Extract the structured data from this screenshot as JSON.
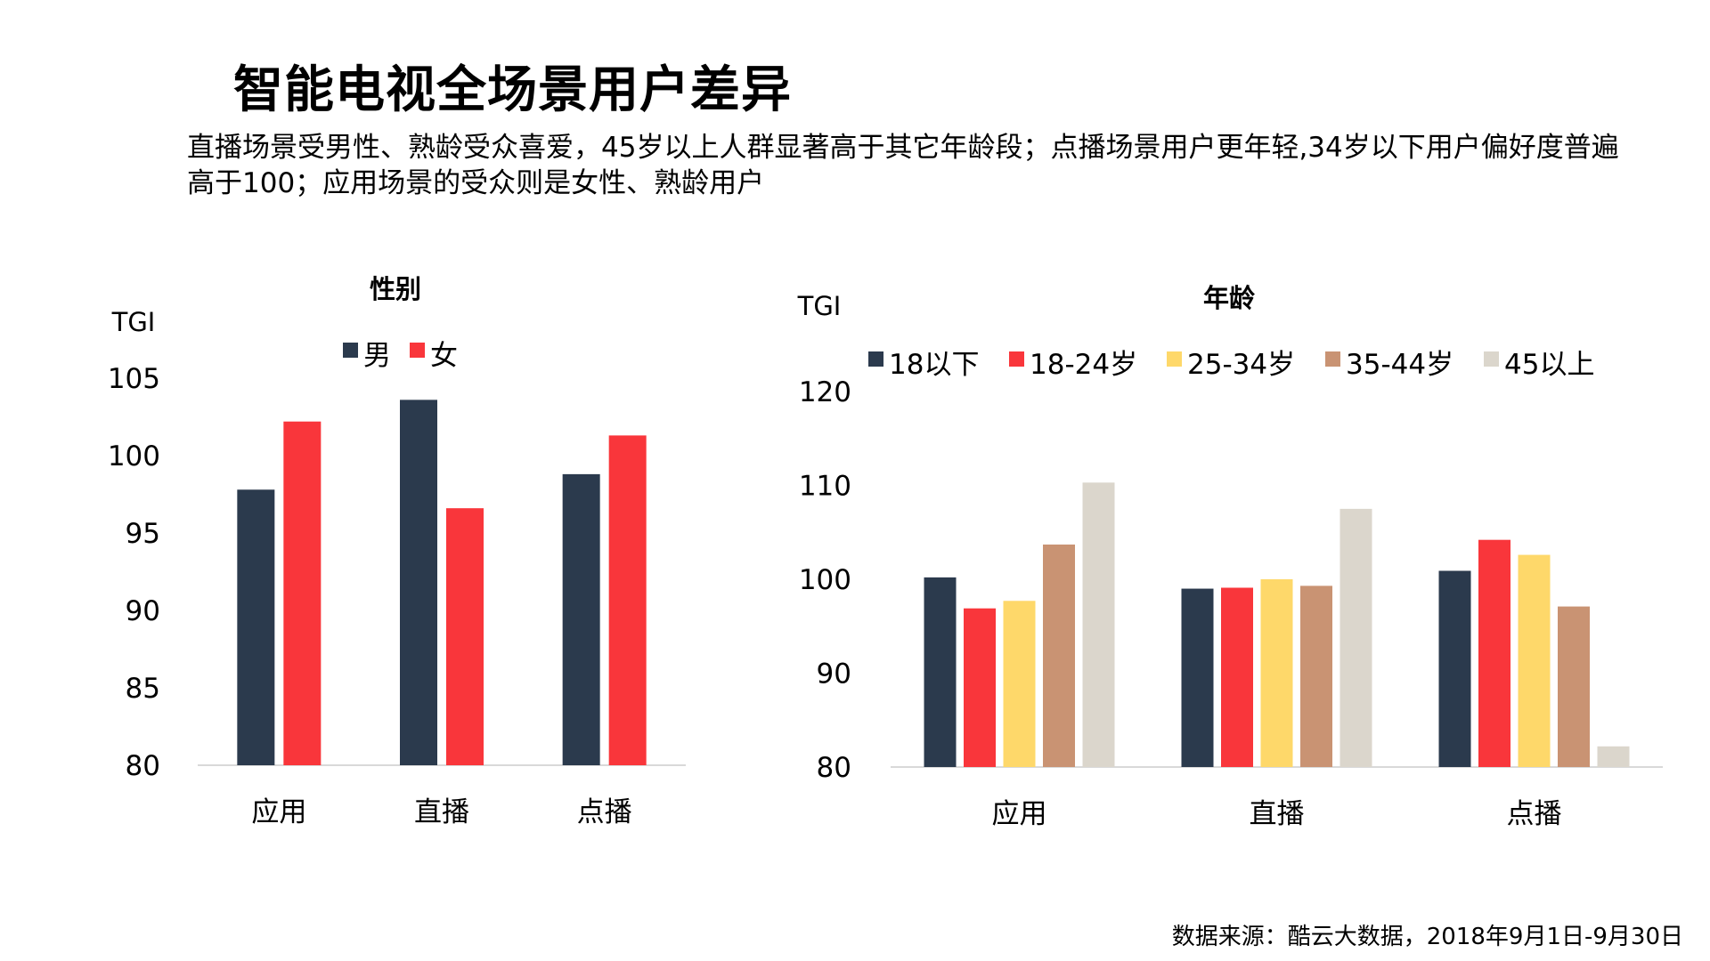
{
  "page": {
    "title": "智能电视全场景用户差异",
    "subtitle": "直播场景受男性、熟龄受众喜爱，45岁以上人群显著高于其它年龄段；点播场景用户更年轻,34岁以下用户偏好度普遍高于100；应用场景的受众则是女性、熟龄用户",
    "source": "数据来源：酷云大数据，2018年9月1日-9月30日"
  },
  "chart_data": [
    {
      "type": "bar",
      "title": "性别",
      "ylabel": "TGI",
      "xlabel": "",
      "categories": [
        "应用",
        "直播",
        "点播"
      ],
      "series": [
        {
          "name": "男",
          "color": "#2b3a4d",
          "values": [
            97.8,
            103.6,
            98.8
          ]
        },
        {
          "name": "女",
          "color": "#f9363b",
          "values": [
            102.2,
            96.6,
            101.3
          ]
        }
      ],
      "ylim": [
        80,
        105
      ],
      "yticks": [
        "80",
        "85",
        "90",
        "95",
        "100",
        "105"
      ],
      "legend": "top",
      "grid": false
    },
    {
      "type": "bar",
      "title": "年龄",
      "ylabel": "TGI",
      "xlabel": "",
      "categories": [
        "应用",
        "直播",
        "点播"
      ],
      "series": [
        {
          "name": "18以下",
          "color": "#2b3a4d",
          "values": [
            100.2,
            99.0,
            100.9
          ]
        },
        {
          "name": "18-24岁",
          "color": "#f9363b",
          "values": [
            96.9,
            99.1,
            104.2
          ]
        },
        {
          "name": "25-34岁",
          "color": "#fed86a",
          "values": [
            97.7,
            100.0,
            102.6
          ]
        },
        {
          "name": "35-44岁",
          "color": "#c99373",
          "values": [
            103.7,
            99.3,
            97.1
          ]
        },
        {
          "name": "45以上",
          "color": "#dbd6cc",
          "values": [
            110.3,
            107.5,
            82.2
          ]
        }
      ],
      "ylim": [
        80,
        120
      ],
      "yticks": [
        "80",
        "90",
        "100",
        "110",
        "120"
      ],
      "legend": "top",
      "grid": false
    }
  ]
}
